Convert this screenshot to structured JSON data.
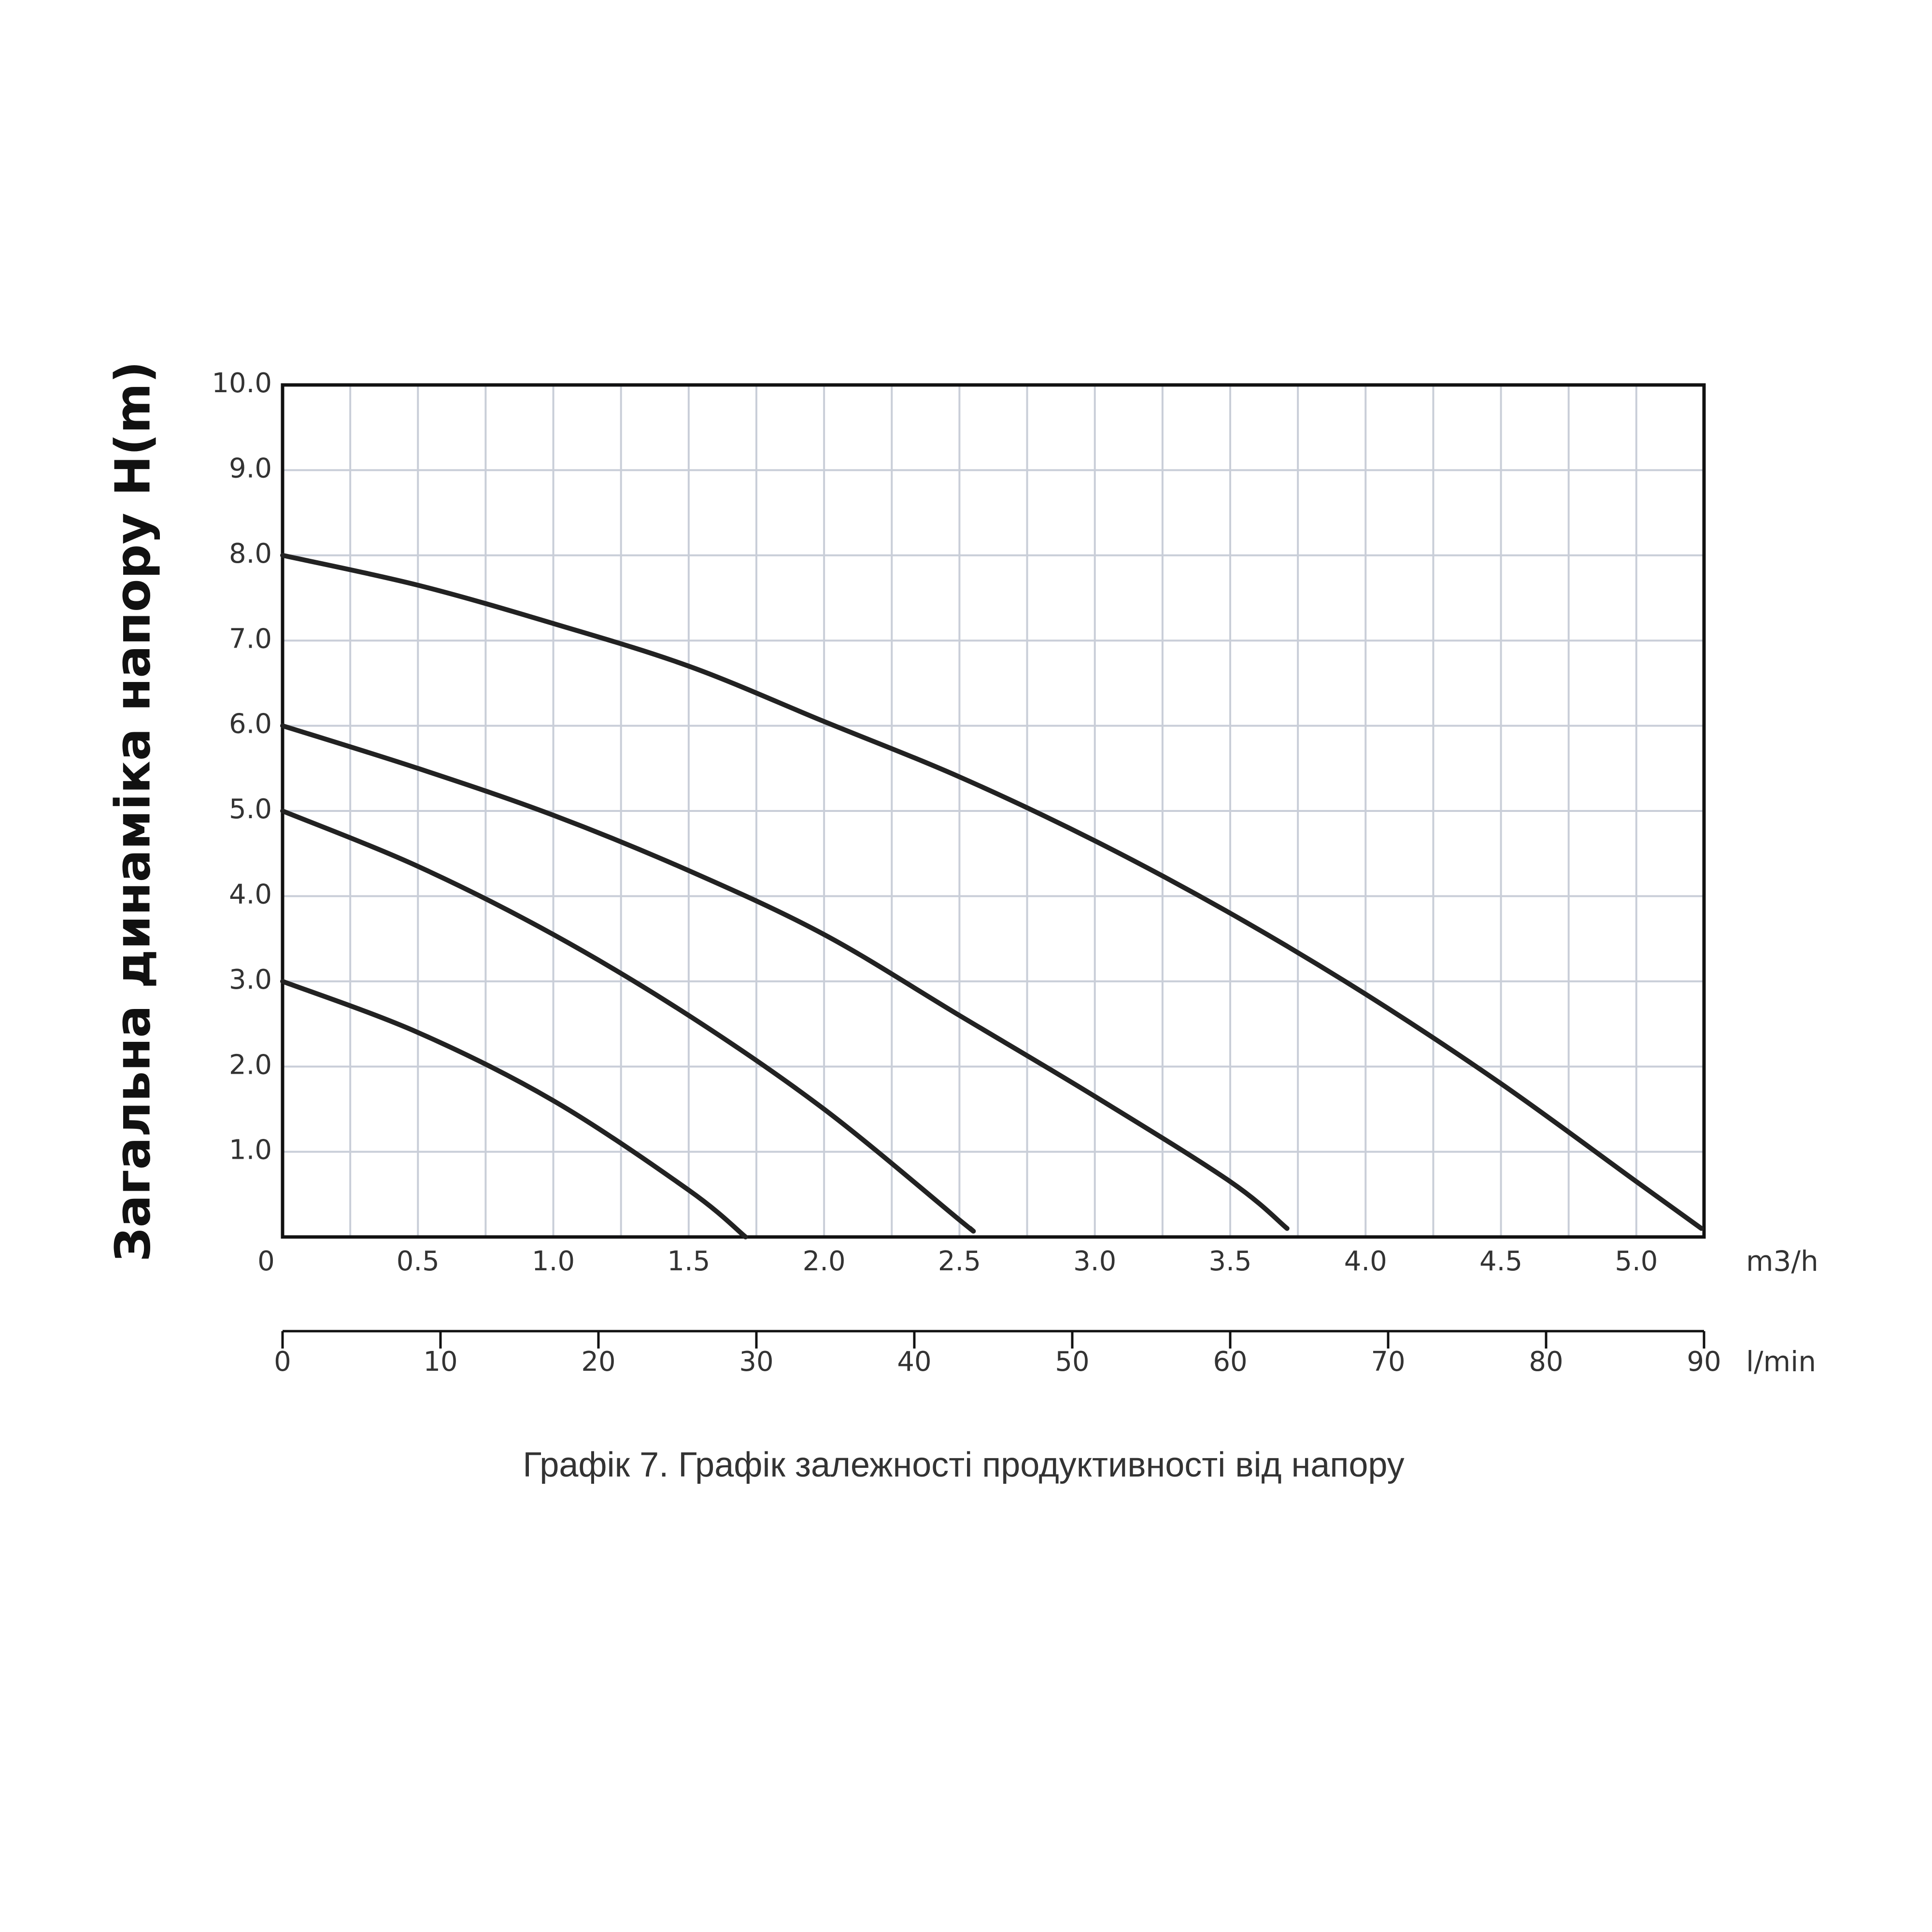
{
  "chart_data": {
    "type": "line",
    "y_label": "Загальна динаміка напору H(m)",
    "x_unit": "m3/h",
    "x2_unit": "l/min",
    "caption": "Графік 7. Графік залежності продуктивності від напору",
    "xlim": [
      0,
      5.25
    ],
    "xticks": [
      0,
      0.5,
      {
        "value": 1,
        "label": "1.0"
      },
      1.5,
      {
        "value": 2,
        "label": "2.0"
      },
      2.5,
      {
        "value": 3,
        "label": "3.0"
      },
      3.5,
      {
        "value": 4,
        "label": "4.0"
      },
      4.5,
      {
        "value": 5,
        "label": "5.0"
      }
    ],
    "x_minor_ticks": [
      0.25,
      0.75,
      1.25,
      1.75,
      2.25,
      2.75,
      3.25,
      3.75,
      4.25,
      4.75,
      5.25
    ],
    "x2lim": [
      0,
      90
    ],
    "x2ticks": [
      0,
      10,
      20,
      30,
      40,
      50,
      60,
      70,
      80,
      90
    ],
    "ylim": [
      0,
      10
    ],
    "yticks": [
      {
        "value": 1,
        "label": "1.0"
      },
      {
        "value": 2,
        "label": "2.0"
      },
      {
        "value": 3,
        "label": "3.0"
      },
      {
        "value": 4,
        "label": "4.0"
      },
      {
        "value": 5,
        "label": "5.0"
      },
      {
        "value": 6,
        "label": "6.0"
      },
      {
        "value": 7,
        "label": "7.0"
      },
      {
        "value": 8,
        "label": "8.0"
      },
      {
        "value": 9,
        "label": "9.0"
      },
      {
        "value": 10,
        "label": "10.0"
      }
    ],
    "grid": true,
    "series": [
      {
        "color": "#222222",
        "x": [
          0,
          0.5,
          1,
          1.5,
          2,
          2.5,
          3,
          3.5,
          4,
          4.5,
          5,
          5.24
        ],
        "values": [
          8,
          7.65,
          7.2,
          6.7,
          6.05,
          5.4,
          4.65,
          3.8,
          2.85,
          1.8,
          0.65,
          0.1
        ]
      },
      {
        "color": "#222222",
        "x": [
          0,
          0.5,
          1,
          1.5,
          2,
          2.5,
          3,
          3.5,
          3.71
        ],
        "values": [
          6,
          5.5,
          4.95,
          4.3,
          3.55,
          2.6,
          1.65,
          0.65,
          0.1
        ]
      },
      {
        "color": "#222222",
        "x": [
          0,
          0.5,
          1,
          1.5,
          2,
          2.5,
          2.54
        ],
        "values": [
          5,
          4.35,
          3.55,
          2.6,
          1.5,
          0.2,
          0.1
        ]
      },
      {
        "color": "#222222",
        "x": [
          0,
          0.5,
          1,
          1.5,
          1.71
        ],
        "values": [
          3,
          2.4,
          1.6,
          0.55,
          0
        ]
      }
    ]
  }
}
